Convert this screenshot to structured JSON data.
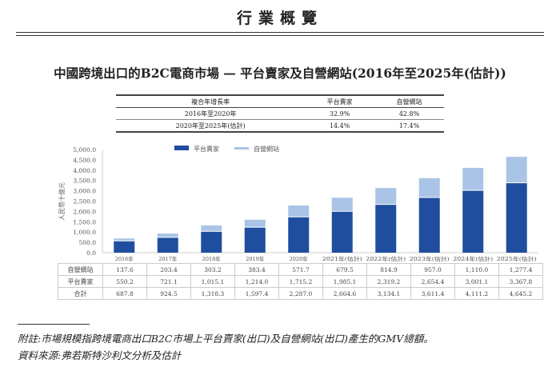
{
  "header": "行業概覽",
  "title": "中國跨境出口的B2C電商市場 — 平台賣家及自營網站(2016年至2025年(估計))",
  "cagr_table": {
    "headers": [
      "複合年增長率",
      "平台賣家",
      "自營網站"
    ],
    "rows": [
      [
        "2016年至2020年",
        "32.9%",
        "42.8%"
      ],
      [
        "2020年至2025年(估計)",
        "14.4%",
        "17.4%"
      ]
    ]
  },
  "chart_data": {
    "type": "bar",
    "stacked": true,
    "categories": [
      "2016年",
      "2017年",
      "2018年",
      "2019年",
      "2020年",
      "2021年(估計)",
      "2022年(估計)",
      "2023年(估計)",
      "2024年(估計)",
      "2025年(估計)"
    ],
    "series": [
      {
        "name": "平台賣家",
        "color": "#1f4e9e",
        "values": [
          550.2,
          721.1,
          1015.1,
          1214.0,
          1715.2,
          1985.1,
          2319.2,
          2654.4,
          3001.1,
          3367.8
        ],
        "labels": [
          "550.2",
          "721.1",
          "1,015.1",
          "1,214.0",
          "1,715.2",
          "1,985.1",
          "2,319.2",
          "2,654.4",
          "3,001.1",
          "3,367.8"
        ]
      },
      {
        "name": "自營網站",
        "color": "#a9c4e6",
        "values": [
          137.6,
          203.4,
          303.2,
          383.4,
          571.7,
          679.5,
          814.9,
          957.0,
          1110.0,
          1277.4
        ],
        "labels": [
          "137.6",
          "203.4",
          "303.2",
          "383.4",
          "571.7",
          "679.5",
          "814.9",
          "957.0",
          "1,110.0",
          "1,277.4"
        ]
      }
    ],
    "totals_label": "合計",
    "totals": [
      "687.8",
      "924.5",
      "1,318.3",
      "1,597.4",
      "2,287.0",
      "2,664.6",
      "3,134.1",
      "3,611.4",
      "4,111.2",
      "4,645.2"
    ],
    "ylabel": "人民幣十億元",
    "ylim": [
      0,
      5000
    ],
    "yticks": [
      "0.0",
      "500.0",
      "1,000.0",
      "1,500.0",
      "2,000.0",
      "2,500.0",
      "3,000.0",
      "3,500.0",
      "4,000.0",
      "4,500.0",
      "5,000.0"
    ],
    "legend": "top",
    "grid": false
  },
  "notes": {
    "note": "附註:市場規模指跨境電商出口B2C市場上平台賣家(出口)及自營網站(出口)產生的GMV總額。",
    "source": "資料來源:弗若斯特沙利文分析及估計"
  }
}
